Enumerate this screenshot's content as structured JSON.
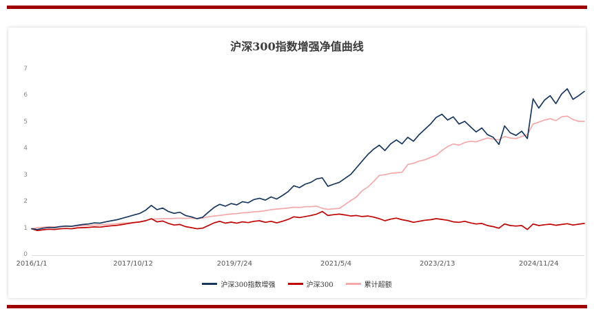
{
  "page": {
    "title": "沪深300指数增强净值曲线"
  },
  "colors": {
    "divider": "#a00000",
    "axis_line": "#d9d9d9",
    "y_tick_text": "#8a8a8a",
    "x_tick_text": "#555555",
    "title_text": "#3b3b3b"
  },
  "chart_data": {
    "type": "line",
    "title": "沪深300指数增强净值曲线",
    "xlabel": "",
    "ylabel": "",
    "grid": false,
    "legend_position": "bottom",
    "x_unit": "decimal_year",
    "xlim": [
      2016.0,
      2025.7
    ],
    "ylim": [
      0,
      7
    ],
    "y_ticks": [
      0,
      1,
      2,
      3,
      4,
      5,
      6,
      7
    ],
    "x_ticks": [
      {
        "label": "2016/1/1",
        "t": 2016.0
      },
      {
        "label": "2017/10/12",
        "t": 2017.78
      },
      {
        "label": "2019/7/24",
        "t": 2019.56
      },
      {
        "label": "2021/5/4",
        "t": 2021.34
      },
      {
        "label": "2023/2/13",
        "t": 2023.12
      },
      {
        "label": "2024/11/24",
        "t": 2024.9
      }
    ],
    "x": [
      2016.0,
      2016.1,
      2016.2,
      2016.3,
      2016.4,
      2016.5,
      2016.6,
      2016.7,
      2016.8,
      2016.9,
      2017.0,
      2017.1,
      2017.2,
      2017.3,
      2017.4,
      2017.5,
      2017.6,
      2017.7,
      2017.8,
      2017.9,
      2018.0,
      2018.1,
      2018.2,
      2018.3,
      2018.4,
      2018.5,
      2018.6,
      2018.7,
      2018.8,
      2018.9,
      2019.0,
      2019.1,
      2019.2,
      2019.3,
      2019.4,
      2019.5,
      2019.6,
      2019.7,
      2019.8,
      2019.9,
      2020.0,
      2020.1,
      2020.2,
      2020.3,
      2020.4,
      2020.5,
      2020.6,
      2020.7,
      2020.8,
      2020.9,
      2021.0,
      2021.1,
      2021.2,
      2021.3,
      2021.4,
      2021.5,
      2021.6,
      2021.7,
      2021.8,
      2021.9,
      2022.0,
      2022.1,
      2022.2,
      2022.3,
      2022.4,
      2022.5,
      2022.6,
      2022.7,
      2022.8,
      2022.9,
      2023.0,
      2023.1,
      2023.2,
      2023.3,
      2023.4,
      2023.5,
      2023.6,
      2023.7,
      2023.8,
      2023.9,
      2024.0,
      2024.1,
      2024.2,
      2024.3,
      2024.4,
      2024.5,
      2024.6,
      2024.7,
      2024.8,
      2024.9,
      2025.0,
      2025.1,
      2025.2,
      2025.3,
      2025.4,
      2025.5,
      2025.6,
      2025.7
    ],
    "series": [
      {
        "name": "沪深300指数增强",
        "color": "#17375e",
        "values": [
          1.0,
          0.97,
          1.02,
          1.05,
          1.04,
          1.08,
          1.1,
          1.09,
          1.13,
          1.16,
          1.18,
          1.22,
          1.21,
          1.26,
          1.3,
          1.34,
          1.4,
          1.46,
          1.52,
          1.58,
          1.7,
          1.88,
          1.72,
          1.78,
          1.65,
          1.58,
          1.62,
          1.5,
          1.45,
          1.38,
          1.43,
          1.62,
          1.8,
          1.92,
          1.85,
          1.95,
          1.9,
          2.02,
          1.98,
          2.1,
          2.15,
          2.08,
          2.2,
          2.12,
          2.25,
          2.4,
          2.62,
          2.55,
          2.68,
          2.75,
          2.88,
          2.92,
          2.6,
          2.68,
          2.75,
          2.9,
          3.05,
          3.3,
          3.55,
          3.8,
          4.0,
          4.15,
          3.95,
          4.2,
          4.35,
          4.2,
          4.45,
          4.3,
          4.55,
          4.75,
          4.95,
          5.2,
          5.32,
          5.1,
          5.22,
          4.95,
          5.05,
          4.85,
          4.65,
          4.8,
          4.55,
          4.45,
          4.18,
          4.88,
          4.62,
          4.52,
          4.68,
          4.4,
          5.9,
          5.55,
          5.85,
          6.02,
          5.72,
          6.08,
          6.28,
          5.88,
          6.02,
          6.18
        ]
      },
      {
        "name": "沪深300",
        "color": "#c00000",
        "values": [
          1.0,
          0.93,
          0.96,
          0.98,
          0.97,
          1.0,
          1.01,
          1.0,
          1.03,
          1.04,
          1.05,
          1.07,
          1.06,
          1.09,
          1.11,
          1.13,
          1.16,
          1.2,
          1.23,
          1.26,
          1.3,
          1.38,
          1.26,
          1.29,
          1.2,
          1.14,
          1.16,
          1.08,
          1.04,
          1.0,
          1.02,
          1.12,
          1.22,
          1.28,
          1.21,
          1.25,
          1.21,
          1.26,
          1.23,
          1.28,
          1.3,
          1.24,
          1.28,
          1.22,
          1.28,
          1.35,
          1.45,
          1.42,
          1.46,
          1.5,
          1.55,
          1.65,
          1.5,
          1.53,
          1.55,
          1.52,
          1.48,
          1.5,
          1.46,
          1.48,
          1.44,
          1.38,
          1.3,
          1.36,
          1.4,
          1.34,
          1.3,
          1.24,
          1.28,
          1.32,
          1.34,
          1.38,
          1.35,
          1.32,
          1.26,
          1.24,
          1.28,
          1.22,
          1.18,
          1.2,
          1.12,
          1.08,
          1.02,
          1.18,
          1.12,
          1.1,
          1.12,
          0.97,
          1.18,
          1.12,
          1.15,
          1.17,
          1.13,
          1.16,
          1.19,
          1.14,
          1.17,
          1.2
        ]
      },
      {
        "name": "累计超额",
        "color": "#f5a8a8",
        "values": [
          1.0,
          1.04,
          1.06,
          1.07,
          1.07,
          1.08,
          1.09,
          1.09,
          1.1,
          1.12,
          1.12,
          1.14,
          1.14,
          1.16,
          1.17,
          1.19,
          1.21,
          1.22,
          1.24,
          1.25,
          1.31,
          1.36,
          1.37,
          1.38,
          1.38,
          1.39,
          1.4,
          1.39,
          1.4,
          1.38,
          1.4,
          1.45,
          1.48,
          1.5,
          1.53,
          1.56,
          1.57,
          1.6,
          1.61,
          1.64,
          1.65,
          1.68,
          1.72,
          1.74,
          1.76,
          1.78,
          1.81,
          1.8,
          1.83,
          1.83,
          1.85,
          1.77,
          1.73,
          1.75,
          1.77,
          1.91,
          2.06,
          2.2,
          2.43,
          2.57,
          2.78,
          3.01,
          3.04,
          3.09,
          3.11,
          3.13,
          3.42,
          3.47,
          3.55,
          3.6,
          3.69,
          3.77,
          3.95,
          4.1,
          4.2,
          4.15,
          4.25,
          4.3,
          4.28,
          4.35,
          4.42,
          4.38,
          4.35,
          4.48,
          4.42,
          4.4,
          4.48,
          4.55,
          4.95,
          5.02,
          5.1,
          5.15,
          5.08,
          5.22,
          5.25,
          5.12,
          5.05,
          5.05
        ]
      }
    ]
  }
}
